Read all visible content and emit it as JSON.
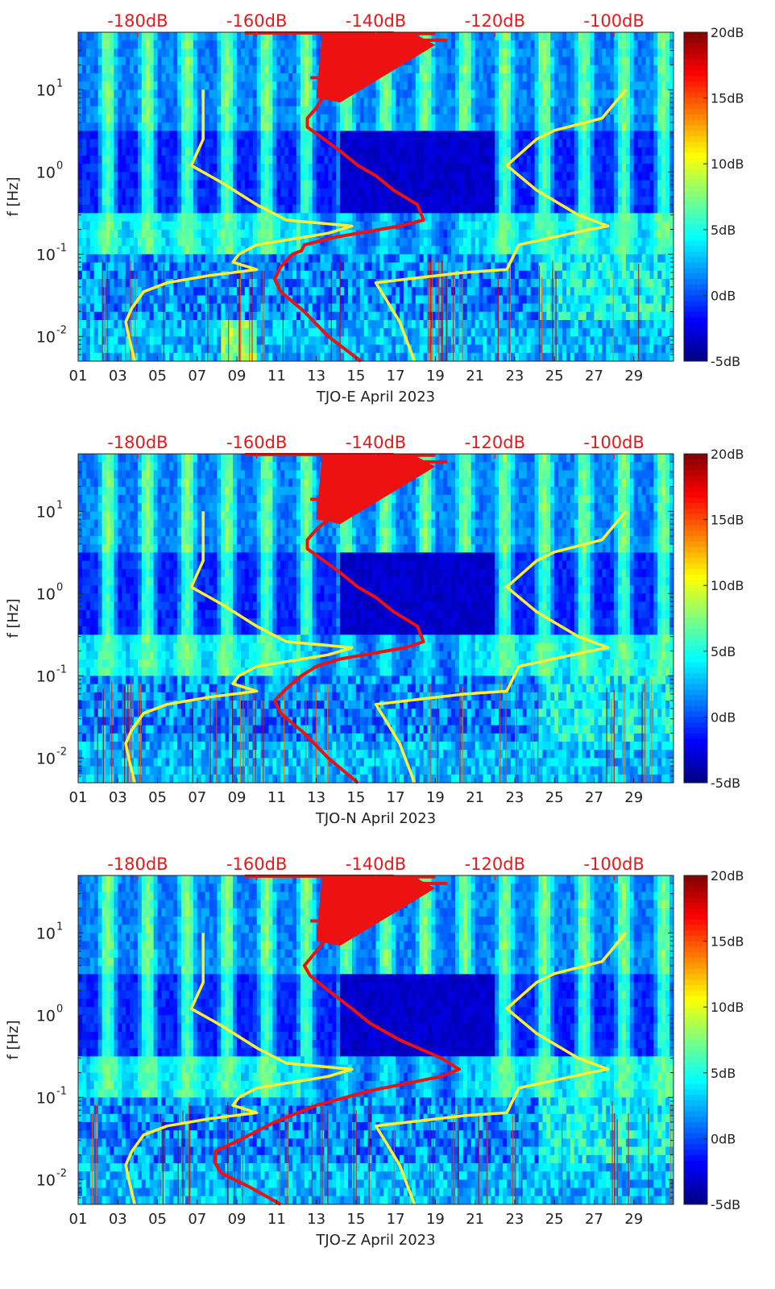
{
  "chart_data": [
    {
      "type": "heatmap",
      "xlabel": "TJO-E April 2023",
      "ylabel": "f [Hz]",
      "x_ticks": [
        "01",
        "03",
        "05",
        "07",
        "09",
        "11",
        "13",
        "15",
        "17",
        "19",
        "21",
        "23",
        "25",
        "27",
        "29"
      ],
      "x_range_days": [
        1,
        31
      ],
      "y_scale": "log",
      "y_range_hz": [
        0.005,
        50
      ],
      "y_ticks": [
        {
          "base": "10",
          "exp": "1",
          "value": 10
        },
        {
          "base": "10",
          "exp": "0",
          "value": 1
        },
        {
          "base": "10",
          "exp": "-1",
          "value": 0.1
        },
        {
          "base": "10",
          "exp": "-2",
          "value": 0.01
        }
      ],
      "top_axis_ticks": [
        {
          "label": "-180dB",
          "db": -180
        },
        {
          "label": "-160dB",
          "db": -160
        },
        {
          "label": "-140dB",
          "db": -140
        },
        {
          "label": "-120dB",
          "db": -120
        },
        {
          "label": "-100dB",
          "db": -100
        }
      ],
      "colorbar": {
        "ticks": [
          "20dB",
          "15dB",
          "10dB",
          "5dB",
          "0dB",
          "-5dB"
        ],
        "range_db": [
          -5,
          20
        ],
        "colormap": "jet"
      },
      "colors": {
        "noise_model": "#ffee33",
        "psd_curve": "#ee1111",
        "top_axis_text": "#e31a1c"
      },
      "series": [
        {
          "color": "yellow",
          "points": [
            [
              0.005,
              -180.5
            ],
            [
              0.01,
              -181.5
            ],
            [
              0.015,
              -182
            ],
            [
              0.022,
              -181
            ],
            [
              0.035,
              -179
            ],
            [
              0.045,
              -175
            ],
            [
              0.055,
              -168
            ],
            [
              0.065,
              -160
            ],
            [
              0.08,
              -164
            ],
            [
              0.1,
              -163
            ],
            [
              0.13,
              -160
            ],
            [
              0.18,
              -148
            ],
            [
              0.22,
              -144
            ],
            [
              0.26,
              -155
            ],
            [
              0.4,
              -160
            ],
            [
              0.75,
              -166
            ],
            [
              1.2,
              -171
            ],
            [
              2.5,
              -169
            ],
            [
              10,
              -169
            ]
          ]
        },
        {
          "color": "yellow",
          "points": [
            [
              0.005,
              -133.5
            ],
            [
              0.015,
              -136
            ],
            [
              0.03,
              -138.5
            ],
            [
              0.045,
              -140
            ],
            [
              0.06,
              -125
            ],
            [
              0.065,
              -118
            ],
            [
              0.13,
              -116
            ],
            [
              0.2,
              -104
            ],
            [
              0.22,
              -101
            ],
            [
              0.3,
              -106
            ],
            [
              0.6,
              -113
            ],
            [
              1.2,
              -118
            ],
            [
              2.5,
              -113
            ],
            [
              3.2,
              -110
            ],
            [
              4.5,
              -102
            ],
            [
              10,
              -98
            ]
          ]
        },
        {
          "color": "red",
          "points": [
            [
              0.005,
              -142.5
            ],
            [
              0.01,
              -148
            ],
            [
              0.02,
              -152
            ],
            [
              0.035,
              -156
            ],
            [
              0.05,
              -157
            ],
            [
              0.07,
              -156
            ],
            [
              0.1,
              -154
            ],
            [
              0.11,
              -152.5
            ],
            [
              0.13,
              -152
            ],
            [
              0.16,
              -147
            ],
            [
              0.22,
              -136
            ],
            [
              0.26,
              -132
            ],
            [
              0.4,
              -133
            ],
            [
              0.6,
              -137
            ],
            [
              0.9,
              -140
            ],
            [
              1.2,
              -143
            ],
            [
              1.8,
              -146
            ],
            [
              2.6,
              -149
            ],
            [
              3.5,
              -151.5
            ],
            [
              4.5,
              -151.5
            ],
            [
              6,
              -150
            ],
            [
              8,
              -149
            ],
            [
              12,
              -146
            ],
            [
              20,
              -143
            ],
            [
              30,
              -140
            ],
            [
              50,
              -138
            ]
          ]
        }
      ]
    },
    {
      "type": "heatmap",
      "xlabel": "TJO-N April 2023",
      "ylabel": "f [Hz]",
      "x_ticks": [
        "01",
        "03",
        "05",
        "07",
        "09",
        "11",
        "13",
        "15",
        "17",
        "19",
        "21",
        "23",
        "25",
        "27",
        "29"
      ],
      "x_range_days": [
        1,
        31
      ],
      "y_scale": "log",
      "y_range_hz": [
        0.005,
        50
      ],
      "y_ticks": [
        {
          "base": "10",
          "exp": "1",
          "value": 10
        },
        {
          "base": "10",
          "exp": "0",
          "value": 1
        },
        {
          "base": "10",
          "exp": "-1",
          "value": 0.1
        },
        {
          "base": "10",
          "exp": "-2",
          "value": 0.01
        }
      ],
      "top_axis_ticks": [
        {
          "label": "-180dB",
          "db": -180
        },
        {
          "label": "-160dB",
          "db": -160
        },
        {
          "label": "-140dB",
          "db": -140
        },
        {
          "label": "-120dB",
          "db": -120
        },
        {
          "label": "-100dB",
          "db": -100
        }
      ],
      "colorbar": {
        "ticks": [
          "20dB",
          "15dB",
          "10dB",
          "5dB",
          "0dB",
          "-5dB"
        ],
        "range_db": [
          -5,
          20
        ],
        "colormap": "jet"
      },
      "colors": {
        "noise_model": "#ffee33",
        "psd_curve": "#ee1111",
        "top_axis_text": "#e31a1c"
      },
      "series": [
        {
          "color": "yellow",
          "points": [
            [
              0.005,
              -180.5
            ],
            [
              0.01,
              -181.5
            ],
            [
              0.015,
              -182
            ],
            [
              0.022,
              -181
            ],
            [
              0.035,
              -179
            ],
            [
              0.045,
              -175
            ],
            [
              0.055,
              -168
            ],
            [
              0.065,
              -160
            ],
            [
              0.08,
              -164
            ],
            [
              0.1,
              -163
            ],
            [
              0.13,
              -160
            ],
            [
              0.18,
              -148
            ],
            [
              0.22,
              -144
            ],
            [
              0.26,
              -155
            ],
            [
              0.4,
              -160
            ],
            [
              0.75,
              -166
            ],
            [
              1.2,
              -171
            ],
            [
              2.5,
              -169
            ],
            [
              10,
              -169
            ]
          ]
        },
        {
          "color": "yellow",
          "points": [
            [
              0.005,
              -133.5
            ],
            [
              0.015,
              -136
            ],
            [
              0.03,
              -138.5
            ],
            [
              0.045,
              -140
            ],
            [
              0.06,
              -125
            ],
            [
              0.065,
              -118
            ],
            [
              0.13,
              -116
            ],
            [
              0.2,
              -104
            ],
            [
              0.22,
              -101
            ],
            [
              0.3,
              -106
            ],
            [
              0.6,
              -113
            ],
            [
              1.2,
              -118
            ],
            [
              2.5,
              -113
            ],
            [
              3.2,
              -110
            ],
            [
              4.5,
              -102
            ],
            [
              10,
              -98
            ]
          ]
        },
        {
          "color": "red",
          "points": [
            [
              0.005,
              -143
            ],
            [
              0.01,
              -148
            ],
            [
              0.02,
              -152
            ],
            [
              0.035,
              -156
            ],
            [
              0.05,
              -157
            ],
            [
              0.07,
              -155
            ],
            [
              0.1,
              -152.5
            ],
            [
              0.13,
              -150
            ],
            [
              0.16,
              -146
            ],
            [
              0.22,
              -135
            ],
            [
              0.26,
              -132
            ],
            [
              0.4,
              -133
            ],
            [
              0.6,
              -137
            ],
            [
              0.9,
              -140
            ],
            [
              1.2,
              -143
            ],
            [
              1.8,
              -146
            ],
            [
              2.6,
              -149
            ],
            [
              3.5,
              -151.5
            ],
            [
              4.5,
              -151.5
            ],
            [
              6,
              -150
            ],
            [
              8,
              -148
            ],
            [
              12,
              -146
            ],
            [
              20,
              -143
            ],
            [
              30,
              -140
            ],
            [
              50,
              -138
            ]
          ]
        }
      ]
    },
    {
      "type": "heatmap",
      "xlabel": "TJO-Z April 2023",
      "ylabel": "f [Hz]",
      "x_ticks": [
        "01",
        "03",
        "05",
        "07",
        "09",
        "11",
        "13",
        "15",
        "17",
        "19",
        "21",
        "23",
        "25",
        "27",
        "29"
      ],
      "x_range_days": [
        1,
        31
      ],
      "y_scale": "log",
      "y_range_hz": [
        0.005,
        50
      ],
      "y_ticks": [
        {
          "base": "10",
          "exp": "1",
          "value": 10
        },
        {
          "base": "10",
          "exp": "0",
          "value": 1
        },
        {
          "base": "10",
          "exp": "-1",
          "value": 0.1
        },
        {
          "base": "10",
          "exp": "-2",
          "value": 0.01
        }
      ],
      "top_axis_ticks": [
        {
          "label": "-180dB",
          "db": -180
        },
        {
          "label": "-160dB",
          "db": -160
        },
        {
          "label": "-140dB",
          "db": -140
        },
        {
          "label": "-120dB",
          "db": -120
        },
        {
          "label": "-100dB",
          "db": -100
        }
      ],
      "colorbar": {
        "ticks": [
          "20dB",
          "15dB",
          "10dB",
          "5dB",
          "0dB",
          "-5dB"
        ],
        "range_db": [
          -5,
          20
        ],
        "colormap": "jet"
      },
      "colors": {
        "noise_model": "#ffee33",
        "psd_curve": "#ee1111",
        "top_axis_text": "#e31a1c"
      },
      "series": [
        {
          "color": "yellow",
          "points": [
            [
              0.005,
              -180.5
            ],
            [
              0.01,
              -181.5
            ],
            [
              0.015,
              -182
            ],
            [
              0.022,
              -181
            ],
            [
              0.035,
              -179
            ],
            [
              0.045,
              -175
            ],
            [
              0.055,
              -168
            ],
            [
              0.065,
              -160
            ],
            [
              0.08,
              -164
            ],
            [
              0.1,
              -163
            ],
            [
              0.13,
              -160
            ],
            [
              0.18,
              -148
            ],
            [
              0.22,
              -144
            ],
            [
              0.26,
              -155
            ],
            [
              0.4,
              -160
            ],
            [
              0.75,
              -166
            ],
            [
              1.2,
              -171
            ],
            [
              2.5,
              -169
            ],
            [
              10,
              -169
            ]
          ]
        },
        {
          "color": "yellow",
          "points": [
            [
              0.005,
              -133.5
            ],
            [
              0.015,
              -136
            ],
            [
              0.03,
              -138.5
            ],
            [
              0.045,
              -140
            ],
            [
              0.06,
              -125
            ],
            [
              0.065,
              -118
            ],
            [
              0.13,
              -116
            ],
            [
              0.2,
              -104
            ],
            [
              0.22,
              -101
            ],
            [
              0.3,
              -106
            ],
            [
              0.6,
              -113
            ],
            [
              1.2,
              -118
            ],
            [
              2.5,
              -113
            ],
            [
              3.2,
              -110
            ],
            [
              4.5,
              -102
            ],
            [
              10,
              -98
            ]
          ]
        },
        {
          "color": "red",
          "points": [
            [
              0.005,
              -156
            ],
            [
              0.008,
              -161
            ],
            [
              0.012,
              -166
            ],
            [
              0.016,
              -167
            ],
            [
              0.022,
              -167
            ],
            [
              0.03,
              -163
            ],
            [
              0.05,
              -157
            ],
            [
              0.08,
              -150
            ],
            [
              0.12,
              -141
            ],
            [
              0.18,
              -129
            ],
            [
              0.22,
              -126
            ],
            [
              0.3,
              -129
            ],
            [
              0.5,
              -136
            ],
            [
              0.8,
              -141
            ],
            [
              1.2,
              -144
            ],
            [
              2,
              -148
            ],
            [
              3,
              -151
            ],
            [
              4,
              -152
            ],
            [
              6,
              -150
            ],
            [
              9,
              -148
            ],
            [
              14,
              -145
            ],
            [
              20,
              -143
            ],
            [
              30,
              -140
            ],
            [
              50,
              -137
            ]
          ]
        }
      ]
    }
  ]
}
